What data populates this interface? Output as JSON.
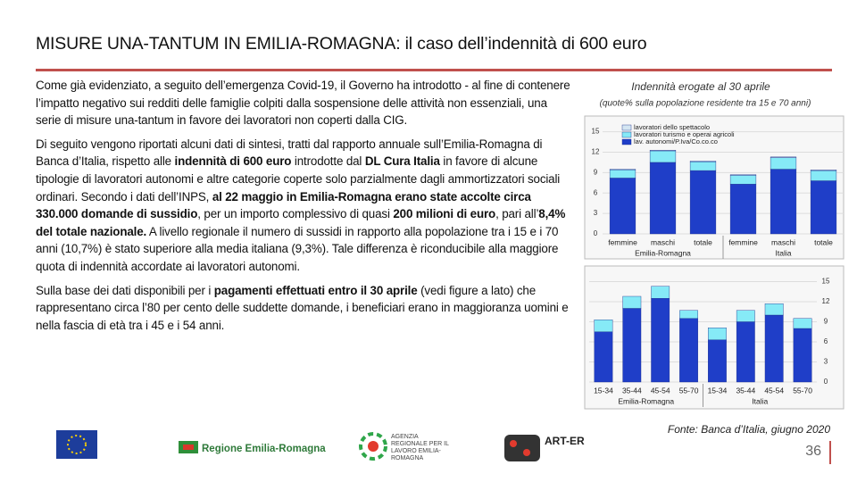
{
  "header": {
    "title": "MISURE UNA-TANTUM IN EMILIA-ROMAGNA: il caso dell’indennità di 600 euro"
  },
  "body": {
    "paragraphs": [
      [
        {
          "text": "Come già evidenziato, a seguito dell’emergenza Covid-19, il Governo ha introdotto - al fine di contenere l’impatto negativo sui redditi delle famiglie colpiti dalla sospensione delle attività non essenziali, una serie di misure una-tantum in favore dei lavoratori non coperti dalla CIG.",
          "bold": false
        }
      ],
      [
        {
          "text": "Di seguito vengono riportati alcuni dati di sintesi, tratti dal rapporto annuale sull’Emilia-Romagna di Banca d’Italia, rispetto alle ",
          "bold": false
        },
        {
          "text": "indennità di 600 euro",
          "bold": true
        },
        {
          "text": " introdotte dal ",
          "bold": false
        },
        {
          "text": "DL Cura Italia",
          "bold": true
        },
        {
          "text": " in favore di alcune tipologie di lavoratori autonomi e altre categorie coperte solo parzialmente dagli ammortizzatori sociali ordinari. Secondo i dati dell’INPS, ",
          "bold": false
        },
        {
          "text": "al 22 maggio in Emilia-Romagna erano state accolte circa 330.000 domande di sussidio",
          "bold": true
        },
        {
          "text": ", per un importo complessivo di quasi ",
          "bold": false
        },
        {
          "text": "200 milioni di euro",
          "bold": true
        },
        {
          "text": ", pari all’",
          "bold": false
        },
        {
          "text": "8,4% del totale nazionale.",
          "bold": true
        },
        {
          "text": " A livello regionale il numero di sussidi in rapporto alla popolazione tra i 15 e i 70 anni (10,7%) è stato superiore alla media italiana (9,3%). Tale differenza è riconducibile alla maggiore quota di indennità accordate ai lavoratori autonomi.",
          "bold": false
        }
      ],
      [
        {
          "text": "Sulla base dei dati disponibili per i ",
          "bold": false
        },
        {
          "text": "pagamenti effettuati entro il 30 aprile",
          "bold": true
        },
        {
          "text": " (vedi figure a lato) che rappresentano circa l’80 per cento delle suddette domande, i beneficiari erano in maggioranza uomini e nella fascia di età tra i 45 e i 54 anni.",
          "bold": false
        }
      ]
    ]
  },
  "figure": {
    "title": "Indennità erogate al 30 aprile",
    "subtitle": "(quote% sulla popolazione residente tra 15 e 70 anni)",
    "source": "Fonte: Banca d’Italia, giugno 2020"
  },
  "chart_data": [
    {
      "type": "bar",
      "stacked": true,
      "axis_side": "left",
      "legend": "top-left",
      "groups": [
        {
          "label": "Emilia-Romagna",
          "categories": [
            "femmine",
            "maschi",
            "totale"
          ]
        },
        {
          "label": "Italia",
          "categories": [
            "femmine",
            "maschi",
            "totale"
          ]
        }
      ],
      "series": [
        {
          "name": "lav. autonomi/P.Iva/Co.co.co",
          "color": "#1f3ec8",
          "values": [
            8.2,
            10.5,
            9.3,
            7.3,
            9.5,
            7.8
          ]
        },
        {
          "name": "lavoratori turismo e operai agricoli",
          "color": "#86eaf7",
          "values": [
            1.2,
            1.7,
            1.3,
            1.3,
            1.7,
            1.5
          ]
        },
        {
          "name": "lavoratori dello spettacolo",
          "color": "#d4e6f2",
          "values": [
            0.1,
            0.1,
            0.1,
            0.1,
            0.1,
            0.1
          ]
        }
      ],
      "ylim": [
        0,
        16
      ],
      "yticks": [
        0,
        3,
        6,
        9,
        12,
        15
      ]
    },
    {
      "type": "bar",
      "stacked": true,
      "axis_side": "right",
      "groups": [
        {
          "label": "Emilia-Romagna",
          "categories": [
            "15-34",
            "35-44",
            "45-54",
            "55-70"
          ]
        },
        {
          "label": "Italia",
          "categories": [
            "15-34",
            "35-44",
            "45-54",
            "55-70"
          ]
        }
      ],
      "series": [
        {
          "color": "#1f3ec8",
          "values": [
            7.5,
            11,
            12.5,
            9.5,
            6.3,
            9,
            10,
            8
          ]
        },
        {
          "color": "#86eaf7",
          "values": [
            1.8,
            1.8,
            1.8,
            1.2,
            1.8,
            1.7,
            1.7,
            1.5
          ]
        }
      ],
      "ylim": [
        0,
        16
      ],
      "yticks": [
        0,
        3,
        6,
        9,
        12,
        15
      ]
    }
  ],
  "footer": {
    "page": "36",
    "logos": [
      "Regione Emilia-Romagna",
      "AGENZIA REGIONALE PER IL LAVORO EMILIA-ROMAGNA",
      "ART-ER"
    ]
  }
}
